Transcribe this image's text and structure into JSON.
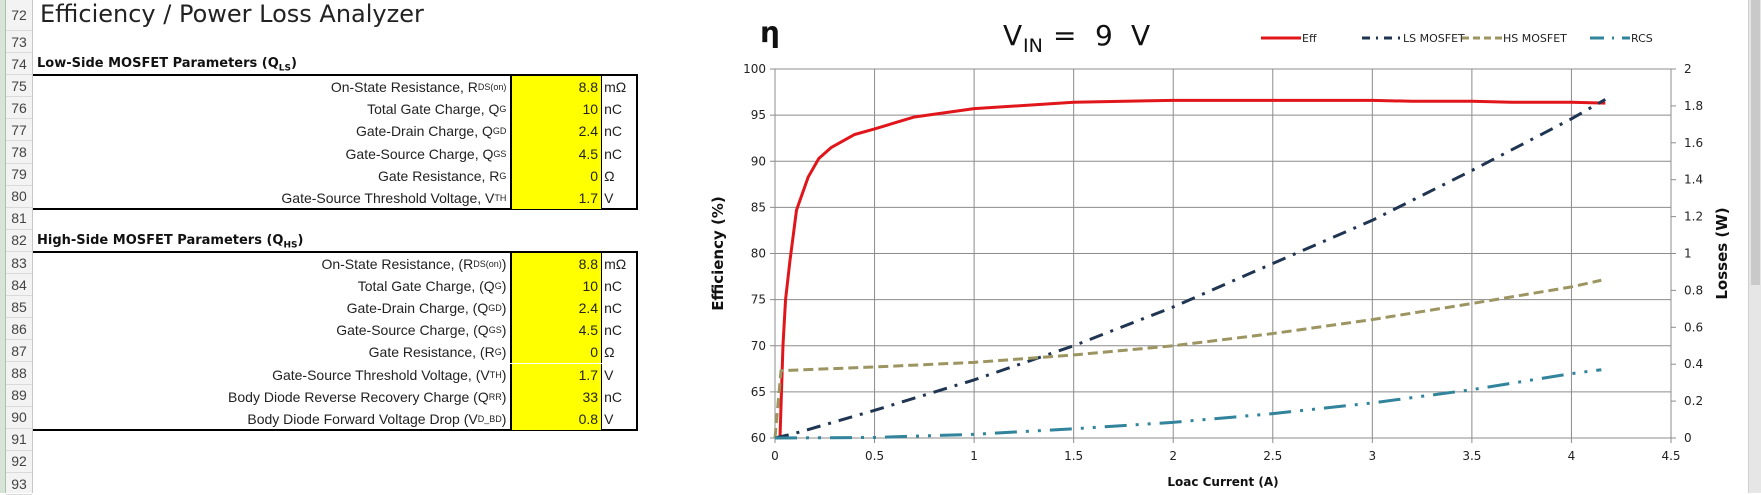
{
  "sheet": {
    "row_numbers": [
      "72",
      "73",
      "74",
      "75",
      "76",
      "77",
      "78",
      "79",
      "80",
      "81",
      "82",
      "83",
      "84",
      "85",
      "86",
      "87",
      "88",
      "89",
      "90",
      "91",
      "92",
      "93"
    ],
    "title": "Efficiency / Power Loss Analyzer",
    "low_side": {
      "heading": "Low-Side MOSFET Parameters (Q",
      "heading_sub": "LS",
      "heading_suffix": ")",
      "rows": [
        {
          "text": "On-State Resistance, R",
          "sub": "DS(on)",
          "suffix": "",
          "value": "8.8",
          "unit": "mΩ"
        },
        {
          "text": "Total Gate Charge, Q",
          "sub": "G",
          "suffix": "",
          "value": "10",
          "unit": "nC"
        },
        {
          "text": "Gate-Drain Charge, Q",
          "sub": "GD",
          "suffix": "",
          "value": "2.4",
          "unit": "nC"
        },
        {
          "text": "Gate-Source Charge, Q",
          "sub": "GS",
          "suffix": "",
          "value": "4.5",
          "unit": "nC"
        },
        {
          "text": "Gate Resistance, R",
          "sub": "G",
          "suffix": "",
          "value": "0",
          "unit": "Ω"
        },
        {
          "text": "Gate-Source Threshold Voltage, V",
          "sub": "TH",
          "suffix": "",
          "value": "1.7",
          "unit": "V"
        }
      ]
    },
    "high_side": {
      "heading": "High-Side MOSFET Parameters (Q",
      "heading_sub": "HS",
      "heading_suffix": ")",
      "rows": [
        {
          "text": "On-State Resistance, (R",
          "sub": "DS(on)",
          "suffix": ")",
          "value": "8.8",
          "unit": "mΩ"
        },
        {
          "text": "Total Gate Charge, (Q",
          "sub": "G",
          "suffix": ")",
          "value": "10",
          "unit": "nC"
        },
        {
          "text": "Gate-Drain Charge, (Q",
          "sub": "GD",
          "suffix": ")",
          "value": "2.4",
          "unit": "nC"
        },
        {
          "text": "Gate-Source Charge, (Q",
          "sub": "GS",
          "suffix": ")",
          "value": "4.5",
          "unit": "nC"
        },
        {
          "text": "Gate Resistance, (R",
          "sub": "G",
          "suffix": ")",
          "value": "0",
          "unit": "Ω"
        },
        {
          "text": "Gate-Source Threshold Voltage, (V",
          "sub": "TH",
          "suffix": ")",
          "value": "1.7",
          "unit": "V"
        },
        {
          "text": "Body Diode Reverse Recovery Charge (Q",
          "sub": "RR",
          "suffix": ")",
          "value": "33",
          "unit": "nC"
        },
        {
          "text": "Body Diode Forward Voltage Drop (V",
          "sub": "D_BD",
          "suffix": ")",
          "value": "0.8",
          "unit": "V"
        }
      ]
    },
    "input_color": "#ffff00"
  },
  "chart_data": {
    "type": "line",
    "title_symbol": "η",
    "title_vin_label": "V",
    "title_vin_sub": "IN",
    "title_vin_eq": "=",
    "title_vin_value": "9",
    "title_vin_unit": "V",
    "xlabel": "Loac Current (A)",
    "ylabel": "Efficiency (%)",
    "y2label": "Losses (W)",
    "xlim": [
      0,
      4.5
    ],
    "ylim": [
      60,
      100
    ],
    "y2lim": [
      0,
      2
    ],
    "xticks": [
      "0",
      "0.5",
      "1",
      "1.5",
      "2",
      "2.5",
      "3",
      "3.5",
      "4",
      "4.5"
    ],
    "yticks": [
      "60",
      "65",
      "70",
      "75",
      "80",
      "85",
      "90",
      "95",
      "100"
    ],
    "y2ticks": [
      "0",
      "0.2",
      "0.4",
      "0.6",
      "0.8",
      "1",
      "1.2",
      "1.4",
      "1.6",
      "1.8",
      "2"
    ],
    "grid": true,
    "legend_position": "top-right",
    "series": [
      {
        "name": "Eff",
        "axis": "left",
        "color": "#e0161b",
        "style": "solid",
        "x": [
          0.025,
          0.04,
          0.053,
          0.075,
          0.108,
          0.167,
          0.22,
          0.283,
          0.4,
          0.5,
          0.7,
          1,
          1.5,
          2,
          2.5,
          3,
          3.2,
          3.5,
          3.7,
          4,
          4.17
        ],
        "y": [
          60,
          70,
          75,
          79.2,
          84.7,
          88.3,
          90.3,
          91.5,
          92.9,
          93.5,
          94.8,
          95.7,
          96.4,
          96.6,
          96.6,
          96.6,
          96.5,
          96.5,
          96.4,
          96.4,
          96.3
        ]
      },
      {
        "name": "LS MOSFET",
        "axis": "right",
        "color": "#1f3552",
        "style": "dash-dot",
        "x": [
          0,
          0.1,
          0.5,
          1,
          1.5,
          2,
          2.5,
          3,
          3.5,
          4,
          4.17
        ],
        "y": [
          0,
          0.025,
          0.15,
          0.315,
          0.5,
          0.71,
          0.946,
          1.18,
          1.45,
          1.73,
          1.835
        ]
      },
      {
        "name": "HS MOSFET",
        "axis": "right",
        "color": "#9c9561",
        "style": "dash",
        "x": [
          0,
          0.03,
          0.5,
          1,
          1.5,
          2,
          2.5,
          3,
          3.5,
          4,
          4.15
        ],
        "y": [
          0,
          0.365,
          0.385,
          0.41,
          0.45,
          0.5,
          0.566,
          0.642,
          0.729,
          0.819,
          0.855
        ]
      },
      {
        "name": "RCS",
        "axis": "right",
        "color": "#31849b",
        "style": "long-dash-dot-dot",
        "x": [
          0,
          0.5,
          1,
          1.5,
          2,
          2.5,
          3,
          3.5,
          4,
          4.15
        ],
        "y": [
          0,
          0.003,
          0.02,
          0.05,
          0.085,
          0.132,
          0.19,
          0.262,
          0.349,
          0.37
        ]
      }
    ]
  }
}
